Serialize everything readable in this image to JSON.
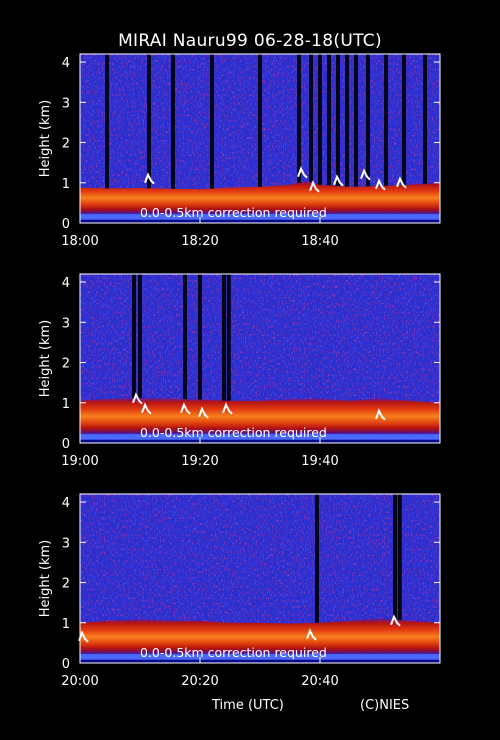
{
  "title": "MIRAI Nauru99 06-28-18(UTC)",
  "xlabel": "Time (UTC)",
  "credit": "(C)NIES",
  "chart_data": [
    {
      "type": "heatmap",
      "ylabel": "Height (km)",
      "y_ticks": [
        0,
        1,
        2,
        3,
        4
      ],
      "ylim": [
        0,
        4.2
      ],
      "x_tick_labels": [
        "18:00",
        "18:20",
        "18:40"
      ],
      "xlim_minutes": [
        0,
        60
      ],
      "annotation": "0.0-0.5km correction required",
      "boundary_layer_top_km": [
        [
          0,
          0.88
        ],
        [
          5,
          0.86
        ],
        [
          10,
          0.87
        ],
        [
          15,
          0.85
        ],
        [
          20,
          0.84
        ],
        [
          25,
          0.88
        ],
        [
          30,
          0.9
        ],
        [
          35,
          0.95
        ],
        [
          38,
          1.05
        ],
        [
          40,
          0.95
        ],
        [
          45,
          0.9
        ],
        [
          50,
          0.92
        ],
        [
          55,
          0.95
        ],
        [
          60,
          1.0
        ]
      ],
      "dropout_minutes": [
        4.5,
        11.5,
        15.5,
        22,
        30,
        36.5,
        38.5,
        40,
        41.5,
        43,
        44.5,
        46,
        48,
        51,
        54,
        57.5
      ],
      "cloud_events": [
        {
          "minute": 11.5,
          "height_km": 1.2
        },
        {
          "minute": 37,
          "height_km": 1.35
        },
        {
          "minute": 39,
          "height_km": 1.0
        },
        {
          "minute": 43,
          "height_km": 1.15
        },
        {
          "minute": 47.5,
          "height_km": 1.3
        },
        {
          "minute": 50,
          "height_km": 1.05
        },
        {
          "minute": 53.5,
          "height_km": 1.1
        }
      ]
    },
    {
      "type": "heatmap",
      "ylabel": "Height (km)",
      "y_ticks": [
        0,
        1,
        2,
        3,
        4
      ],
      "ylim": [
        0,
        4.2
      ],
      "x_tick_labels": [
        "19:00",
        "19:20",
        "19:40"
      ],
      "xlim_minutes": [
        0,
        60
      ],
      "annotation": "0.0-0.5km correction required",
      "boundary_layer_top_km": [
        [
          0,
          1.05
        ],
        [
          5,
          1.1
        ],
        [
          10,
          1.12
        ],
        [
          15,
          1.1
        ],
        [
          20,
          1.08
        ],
        [
          25,
          1.05
        ],
        [
          30,
          1.05
        ],
        [
          35,
          1.08
        ],
        [
          40,
          1.1
        ],
        [
          45,
          1.05
        ],
        [
          50,
          1.1
        ],
        [
          55,
          1.05
        ],
        [
          60,
          1.0
        ]
      ],
      "dropout_minutes": [
        9,
        10,
        17.5,
        20,
        24,
        24.8
      ],
      "cloud_events": [
        {
          "minute": 9.5,
          "height_km": 1.2
        },
        {
          "minute": 11,
          "height_km": 0.95
        },
        {
          "minute": 17.5,
          "height_km": 0.95
        },
        {
          "minute": 20.5,
          "height_km": 0.85
        },
        {
          "minute": 24.5,
          "height_km": 0.95
        },
        {
          "minute": 50,
          "height_km": 0.8
        }
      ]
    },
    {
      "type": "heatmap",
      "ylabel": "Height (km)",
      "y_ticks": [
        0,
        1,
        2,
        3,
        4
      ],
      "ylim": [
        0,
        4.2
      ],
      "x_tick_labels": [
        "20:00",
        "20:20",
        "20:40"
      ],
      "xlim_minutes": [
        0,
        60
      ],
      "annotation": "0.0-0.5km correction required",
      "boundary_layer_top_km": [
        [
          0,
          1.0
        ],
        [
          5,
          1.05
        ],
        [
          10,
          1.08
        ],
        [
          15,
          1.05
        ],
        [
          20,
          1.05
        ],
        [
          25,
          1.0
        ],
        [
          30,
          1.0
        ],
        [
          35,
          0.98
        ],
        [
          40,
          1.0
        ],
        [
          45,
          1.05
        ],
        [
          50,
          1.1
        ],
        [
          55,
          1.05
        ],
        [
          60,
          1.0
        ]
      ],
      "dropout_minutes": [
        39.5,
        52.5,
        53.3
      ],
      "cloud_events": [
        {
          "minute": 0.5,
          "height_km": 0.75
        },
        {
          "minute": 38.5,
          "height_km": 0.8
        },
        {
          "minute": 52.5,
          "height_km": 1.15
        }
      ]
    }
  ]
}
